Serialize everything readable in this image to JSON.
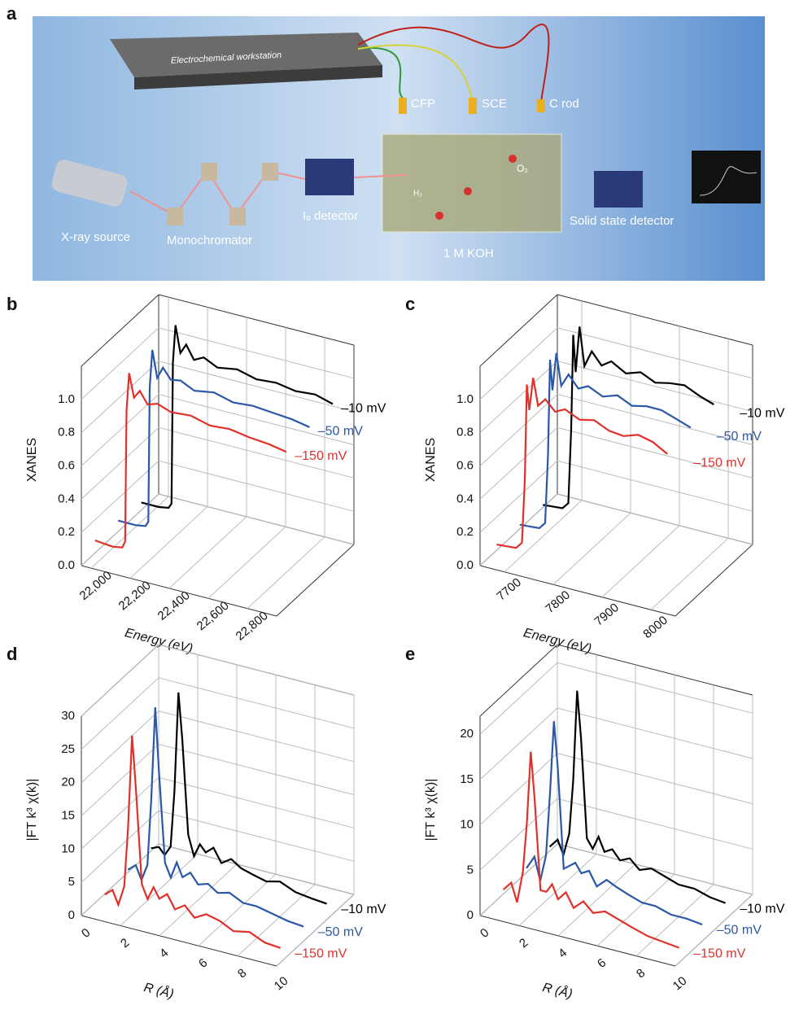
{
  "panel_labels": [
    "a",
    "b",
    "c",
    "d",
    "e"
  ],
  "schematic": {
    "workstation": "Electrochemical workstation",
    "cfp": "CFP",
    "sce": "SCE",
    "c_rod": "C rod",
    "o2": "O₂",
    "h2": "H₂",
    "xray_source": "X-ray source",
    "monochromator": "Monochromator",
    "i0_detector": "Iₒ detector",
    "electrolyte": "1 M KOH",
    "solid_state_detector": "Solid state detector"
  },
  "chart_data": [
    {
      "type": "line3d",
      "x_label": "Energy (eV)",
      "y_label": "XANES",
      "x": [
        21960,
        22050,
        22100,
        22115,
        22122,
        22135,
        22160,
        22190,
        22230,
        22280,
        22350,
        22450,
        22550,
        22650,
        22750,
        22850,
        22940
      ],
      "series": [
        {
          "name": "–10 mV",
          "color": "#000000",
          "values": [
            0.06,
            0.06,
            0.07,
            0.1,
            0.95,
            1.18,
            1.02,
            1.08,
            1.0,
            1.03,
            0.99,
            1.01,
            0.98,
            0.99,
            0.97,
            0.98,
            0.95
          ]
        },
        {
          "name": "–50 mV",
          "color": "#2a57a8",
          "values": [
            0.08,
            0.08,
            0.09,
            0.12,
            0.93,
            1.16,
            1.0,
            1.07,
            1.01,
            1.02,
            0.98,
            1.0,
            0.97,
            0.98,
            0.97,
            0.96,
            0.94
          ]
        },
        {
          "name": "–150 mV",
          "color": "#e0302a",
          "values": [
            0.09,
            0.08,
            0.09,
            0.13,
            0.92,
            1.15,
            1.01,
            1.06,
            0.99,
            1.01,
            0.98,
            0.99,
            0.96,
            0.97,
            0.95,
            0.94,
            0.92
          ]
        }
      ],
      "xlim": [
        21950,
        22950
      ],
      "xticks": [
        {
          "value": 22000,
          "label": "22,000"
        },
        {
          "value": 22200,
          "label": "22,200"
        },
        {
          "value": 22400,
          "label": "22,400"
        },
        {
          "value": 22600,
          "label": "22,600"
        },
        {
          "value": 22800,
          "label": "22,800"
        }
      ],
      "ylim": [
        0,
        1.2
      ],
      "yticks": [
        {
          "value": 0,
          "label": "0.0"
        },
        0.2,
        0.4,
        0.6,
        0.8,
        {
          "value": 1,
          "label": "1.0"
        }
      ],
      "grid": true
    },
    {
      "type": "line3d",
      "x_label": "Energy (eV)",
      "y_label": "XANES",
      "x": [
        7660,
        7700,
        7712,
        7718,
        7722,
        7727,
        7735,
        7745,
        7760,
        7780,
        7800,
        7830,
        7860,
        7890,
        7920,
        7950,
        7980,
        8010
      ],
      "series": [
        {
          "name": "–10 mV",
          "color": "#000000",
          "values": [
            0.05,
            0.06,
            0.1,
            0.55,
            1.12,
            0.9,
            1.18,
            0.95,
            1.05,
            0.98,
            1.02,
            0.97,
            1.0,
            0.96,
            0.98,
            0.99,
            0.95,
            0.92
          ]
        },
        {
          "name": "–50 mV",
          "color": "#2a57a8",
          "values": [
            0.06,
            0.07,
            0.11,
            0.52,
            1.1,
            0.92,
            1.15,
            0.96,
            1.04,
            0.97,
            1.0,
            0.96,
            0.99,
            0.95,
            0.97,
            0.97,
            0.94,
            0.91
          ]
        },
        {
          "name": "–150 mV",
          "color": "#e0302a",
          "values": [
            0.07,
            0.08,
            0.12,
            0.5,
            1.08,
            0.93,
            1.13,
            0.97,
            1.02,
            0.96,
            0.99,
            0.95,
            0.97,
            0.93,
            0.92,
            0.95,
            0.93,
            0.88
          ]
        }
      ],
      "xlim": [
        7650,
        8050
      ],
      "xticks": [
        7700,
        7800,
        7900,
        8000
      ],
      "ylim": [
        0,
        1.2
      ],
      "yticks": [
        {
          "value": 0,
          "label": "0.0"
        },
        0.2,
        0.4,
        0.6,
        0.8,
        {
          "value": 1,
          "label": "1.0"
        }
      ],
      "grid": true
    },
    {
      "type": "line3d",
      "x_label": "R (Å)",
      "y_label": "|FT k³ χ(k)|",
      "x": [
        0.6,
        1.0,
        1.3,
        1.6,
        1.8,
        2.0,
        2.2,
        2.5,
        2.8,
        3.1,
        3.4,
        3.8,
        4.2,
        4.7,
        5.2,
        5.8,
        6.5,
        7.2,
        8.0,
        8.8,
        9.6
      ],
      "series": [
        {
          "name": "–10 mV",
          "color": "#000000",
          "values": [
            2.5,
            3,
            2,
            3.5,
            12,
            27,
            20,
            6,
            3,
            5,
            4,
            5,
            3,
            4,
            3,
            2.5,
            2,
            2.5,
            1.5,
            1.2,
            1
          ]
        },
        {
          "name": "–50 mV",
          "color": "#2a57a8",
          "values": [
            2.5,
            3.5,
            1.5,
            4,
            14,
            28,
            18,
            5,
            3,
            5.5,
            3.5,
            4.5,
            3,
            3.5,
            2.5,
            3,
            2,
            2,
            1.5,
            1,
            0.8
          ]
        },
        {
          "name": "–150 mV",
          "color": "#e0302a",
          "values": [
            2,
            3,
            1,
            4,
            13,
            27,
            19,
            5,
            3,
            5,
            3.5,
            4.5,
            2.5,
            3.5,
            2,
            3,
            2.5,
            1.5,
            2,
            1,
            0.8
          ]
        }
      ],
      "xlim": [
        0,
        10
      ],
      "xticks": [
        0,
        2,
        4,
        6,
        8,
        10
      ],
      "ylim": [
        0,
        30
      ],
      "yticks": [
        0,
        5,
        10,
        15,
        20,
        25,
        30
      ],
      "grid": true
    },
    {
      "type": "line3d",
      "x_label": "R (Å)",
      "y_label": "|FT k³ χ(k)|",
      "x": [
        0.6,
        1.0,
        1.3,
        1.6,
        1.8,
        2.0,
        2.2,
        2.5,
        2.8,
        3.1,
        3.4,
        3.8,
        4.2,
        4.7,
        5.2,
        5.8,
        6.5,
        7.2,
        8.0,
        8.8,
        9.6
      ],
      "series": [
        {
          "name": "–10 mV",
          "color": "#000000",
          "values": [
            2,
            3,
            1.5,
            4,
            10,
            20,
            15,
            4,
            3,
            4.5,
            3,
            3.5,
            2.5,
            3,
            2,
            2.5,
            2,
            1.5,
            1.5,
            1,
            0.8
          ]
        },
        {
          "name": "–50 mV",
          "color": "#2a57a8",
          "values": [
            2,
            3.5,
            1,
            4,
            11,
            19,
            14,
            3,
            3.5,
            4,
            3,
            3.5,
            2,
            3,
            2.5,
            2,
            1.5,
            1.5,
            1,
            1,
            0.8
          ]
        },
        {
          "name": "–150 mV",
          "color": "#e0302a",
          "values": [
            2,
            3,
            1,
            4.5,
            10,
            18,
            13,
            3,
            3,
            4,
            2.5,
            3.5,
            2,
            3,
            2,
            2.5,
            2,
            1.5,
            1,
            0.8,
            0.6
          ]
        }
      ],
      "xlim": [
        0,
        10
      ],
      "xticks": [
        0,
        2,
        4,
        6,
        8,
        10
      ],
      "ylim": [
        0,
        22
      ],
      "yticks": [
        0,
        5,
        10,
        15,
        20
      ],
      "grid": true
    }
  ]
}
